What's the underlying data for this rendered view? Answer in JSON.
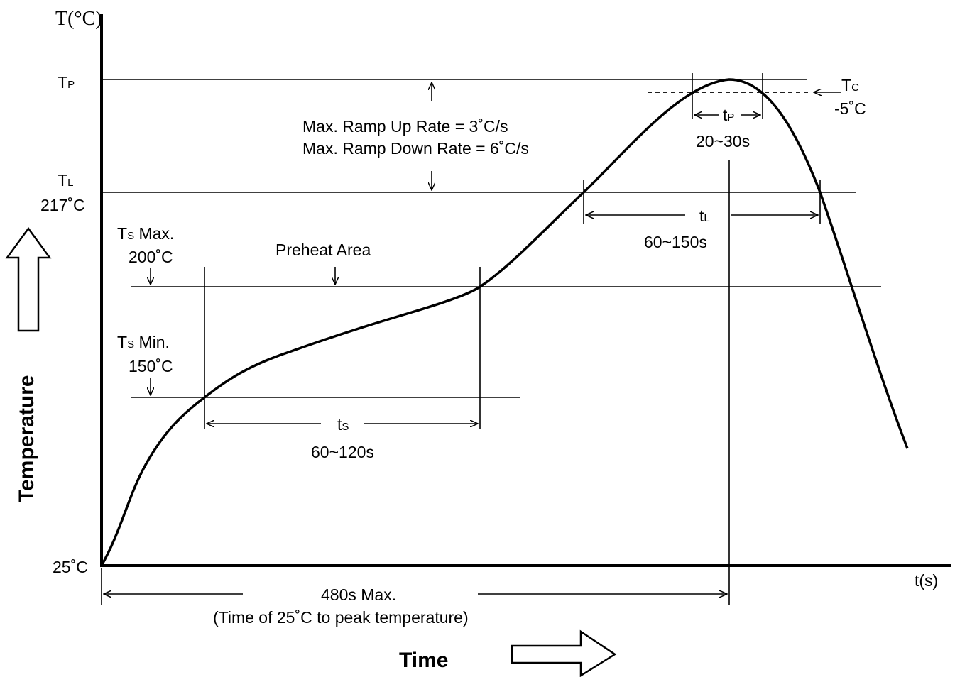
{
  "y_axis": {
    "title": "T(°C)",
    "caption": "Temperature",
    "origin_label": "25˚C"
  },
  "x_axis": {
    "unit_label": "t(s)",
    "caption": "Time"
  },
  "levels": {
    "tp": {
      "main": "T",
      "sub": "P"
    },
    "tl": {
      "main": "T",
      "sub": "L",
      "value": "217˚C"
    },
    "ts_max": {
      "main": "T",
      "sub": "S",
      "suffix": " Max.",
      "value": "200˚C"
    },
    "ts_min": {
      "main": "T",
      "sub": "S",
      "suffix": " Min.",
      "value": "150˚C"
    },
    "tc": {
      "main": "T",
      "sub": "C",
      "value": "-5˚C"
    }
  },
  "annotations": {
    "ramp_up": "Max. Ramp Up Rate = 3˚C/s",
    "ramp_down": "Max. Ramp Down Rate = 6˚C/s",
    "preheat": "Preheat Area",
    "total_time": "480s Max.",
    "total_time_note": "(Time of 25˚C to peak temperature)"
  },
  "intervals": {
    "ts": {
      "main": "t",
      "sub": "S",
      "range": "60~120s"
    },
    "tl": {
      "main": "t",
      "sub": "L",
      "range": "60~150s"
    },
    "tp": {
      "main": "t",
      "sub": "P",
      "range": "20~30s"
    }
  }
}
